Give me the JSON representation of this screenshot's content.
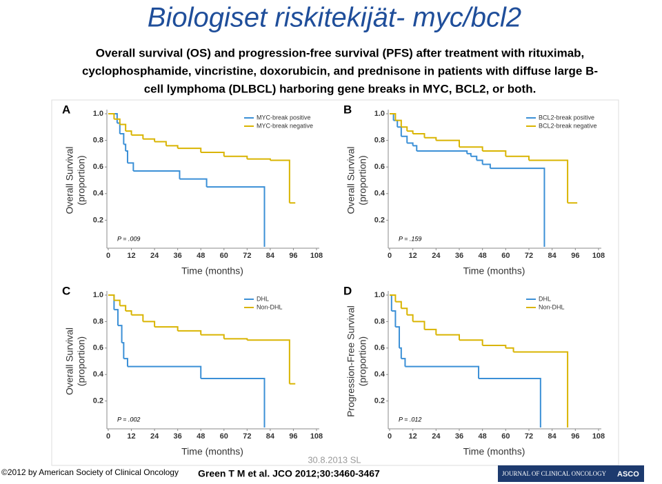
{
  "slide_title": "Biologiset riskitekijät- myc/bcl2",
  "subtitle_lines": [
    "Overall survival (OS) and progression-free survival (PFS) after treatment with rituximab,",
    "cyclophosphamide, vincristine, doxorubicin, and prednisone in patients with diffuse large B-",
    "cell lymphoma (DLBCL) harboring gene breaks in MYC, BCL2, or both."
  ],
  "chart_data": [
    {
      "type": "line",
      "step": true,
      "panel": "A",
      "ylabel": [
        "Overall Survival",
        "(proportion)"
      ],
      "xlabel": "Time (months)",
      "annotation": "P = .009",
      "xlim": [
        0,
        108
      ],
      "ylim": [
        0,
        1
      ],
      "xticks": [
        0,
        12,
        24,
        36,
        48,
        60,
        72,
        84,
        96,
        108
      ],
      "yticks": [
        0.2,
        0.4,
        0.6,
        0.8,
        {
          "value": 1,
          "label": "1.0"
        }
      ],
      "series": [
        {
          "name": "MYC-break positive",
          "color": "#3a8fd6",
          "x": [
            0,
            4.6,
            6,
            8,
            9,
            10,
            13,
            37,
            51,
            81
          ],
          "values": [
            1,
            0.93,
            0.85,
            0.77,
            0.72,
            0.63,
            0.57,
            0.51,
            0.45,
            0
          ]
        },
        {
          "name": "MYC-break negative",
          "color": "#d9b400",
          "x": [
            0,
            3,
            6,
            9,
            12,
            18,
            24,
            30,
            36,
            48,
            60,
            72,
            84,
            94,
            97
          ],
          "values": [
            1,
            0.96,
            0.92,
            0.87,
            0.84,
            0.81,
            0.79,
            0.76,
            0.74,
            0.71,
            0.68,
            0.66,
            0.65,
            0.33,
            0.33
          ]
        }
      ]
    },
    {
      "type": "line",
      "step": true,
      "panel": "B",
      "ylabel": [
        "Overall Survival",
        "(proportion)"
      ],
      "xlabel": "Time (months)",
      "annotation": "P = .159",
      "xlim": [
        0,
        108
      ],
      "ylim": [
        0,
        1
      ],
      "xticks": [
        0,
        12,
        24,
        36,
        48,
        60,
        72,
        84,
        96,
        108
      ],
      "yticks": [
        0.2,
        0.4,
        0.6,
        0.8,
        {
          "value": 1,
          "label": "1.0"
        }
      ],
      "series": [
        {
          "name": "BCL2-break positive",
          "color": "#3a8fd6",
          "x": [
            0,
            2,
            4,
            6,
            9,
            12,
            14,
            40,
            42,
            45,
            48,
            52,
            80
          ],
          "values": [
            1,
            0.95,
            0.9,
            0.83,
            0.78,
            0.76,
            0.72,
            0.7,
            0.68,
            0.65,
            0.62,
            0.59,
            0
          ]
        },
        {
          "name": "BCL2-break negative",
          "color": "#d9b400",
          "x": [
            0,
            3,
            6,
            9,
            12,
            18,
            24,
            36,
            48,
            60,
            72,
            92,
            97
          ],
          "values": [
            1,
            0.95,
            0.9,
            0.87,
            0.85,
            0.82,
            0.8,
            0.75,
            0.72,
            0.68,
            0.65,
            0.33,
            0.33
          ]
        }
      ]
    },
    {
      "type": "line",
      "step": true,
      "panel": "C",
      "ylabel": [
        "Overall Survival",
        "(proportion)"
      ],
      "xlabel": "Time (months)",
      "annotation": "P = .002",
      "xlim": [
        0,
        108
      ],
      "ylim": [
        0,
        1
      ],
      "xticks": [
        0,
        12,
        24,
        36,
        48,
        60,
        72,
        84,
        96,
        108
      ],
      "yticks": [
        0.2,
        0.4,
        0.6,
        0.8,
        {
          "value": 1,
          "label": "1.0"
        }
      ],
      "series": [
        {
          "name": "DHL",
          "color": "#3a8fd6",
          "x": [
            0,
            3,
            5,
            7,
            8,
            10,
            48,
            81
          ],
          "values": [
            1,
            0.89,
            0.77,
            0.64,
            0.52,
            0.46,
            0.37,
            0
          ]
        },
        {
          "name": "Non-DHL",
          "color": "#d9b400",
          "x": [
            0,
            3,
            6,
            9,
            12,
            18,
            24,
            36,
            48,
            60,
            72,
            94,
            97
          ],
          "values": [
            1,
            0.96,
            0.92,
            0.88,
            0.85,
            0.8,
            0.76,
            0.73,
            0.7,
            0.67,
            0.66,
            0.33,
            0.33
          ]
        }
      ]
    },
    {
      "type": "line",
      "step": true,
      "panel": "D",
      "ylabel": [
        "Progression-Free Survival",
        "(proportion)"
      ],
      "xlabel": "Time (months)",
      "annotation": "P = .012",
      "xlim": [
        0,
        108
      ],
      "ylim": [
        0,
        1
      ],
      "xticks": [
        0,
        12,
        24,
        36,
        48,
        60,
        72,
        84,
        96,
        108
      ],
      "yticks": [
        0.2,
        0.4,
        0.6,
        0.8,
        {
          "value": 1,
          "label": "1.0"
        }
      ],
      "series": [
        {
          "name": "DHL",
          "color": "#3a8fd6",
          "x": [
            0,
            1,
            3,
            5,
            6,
            8,
            46,
            78
          ],
          "values": [
            1,
            0.88,
            0.76,
            0.6,
            0.52,
            0.46,
            0.37,
            0
          ]
        },
        {
          "name": "Non-DHL",
          "color": "#d9b400",
          "x": [
            0,
            3,
            6,
            9,
            12,
            18,
            24,
            36,
            48,
            60,
            64,
            92
          ],
          "values": [
            1,
            0.95,
            0.9,
            0.85,
            0.8,
            0.74,
            0.7,
            0.66,
            0.62,
            0.6,
            0.57,
            0
          ]
        }
      ]
    }
  ],
  "footer": {
    "copyright": "©2012 by American Society of Clinical Oncology",
    "date": "30.8.2013 SL",
    "citation": "Green T M et al. JCO 2012;30:3460-3467",
    "journal": "JOURNAL OF CLINICAL ONCOLOGY",
    "society": "ASCO"
  }
}
